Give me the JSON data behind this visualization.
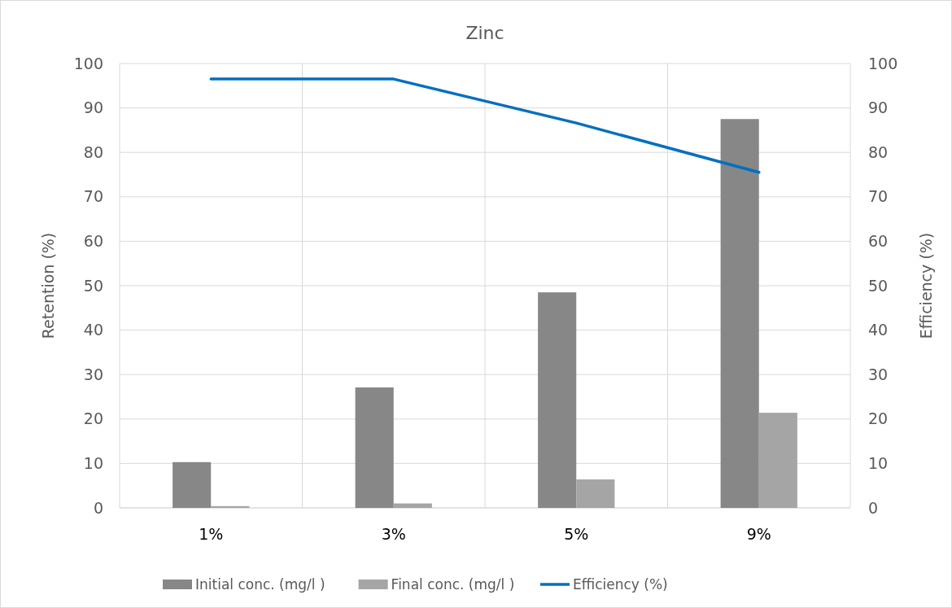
{
  "chart_data": {
    "type": "bar",
    "title": "Zinc",
    "categories": [
      "1%",
      "3%",
      "5%",
      "9%"
    ],
    "ylabel": "Retention (%)",
    "y2label": "Efficiency (%)",
    "series": [
      {
        "name": "Initial conc. (mg/l )",
        "color": "#878787",
        "values": [
          10.3,
          27.1,
          48.5,
          87.5
        ]
      },
      {
        "name": "Final conc. (mg/l )",
        "color": "#a5a5a5",
        "values": [
          0.4,
          1.0,
          6.4,
          21.4
        ]
      },
      {
        "name": "Efficiency (%)",
        "type": "line",
        "axis": "y2",
        "color": "#0070c0",
        "values": [
          96.5,
          96.5,
          86.6,
          75.5
        ]
      }
    ],
    "ylim": [
      0,
      100
    ],
    "yticks": [
      0,
      10,
      20,
      30,
      40,
      50,
      60,
      70,
      80,
      90,
      100
    ],
    "y2lim": [
      0,
      100
    ],
    "y2ticks": [
      0,
      10,
      20,
      30,
      40,
      50,
      60,
      70,
      80,
      90,
      100
    ],
    "grid": true,
    "legend": "bottom",
    "marker": "none",
    "line_style": "solid"
  }
}
